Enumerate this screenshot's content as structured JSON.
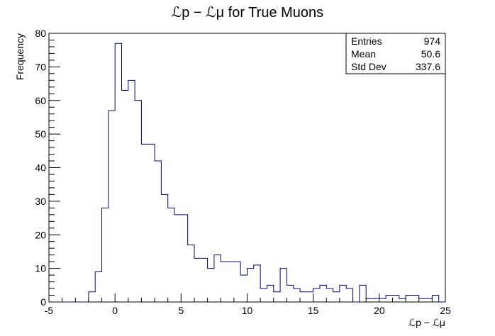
{
  "chart_data": {
    "type": "bar",
    "title": "ℒp − ℒμ for True Muons",
    "xlabel": "ℒp − ℒμ",
    "ylabel": "Frequency",
    "xlim": [
      -5,
      25
    ],
    "ylim": [
      0,
      80
    ],
    "bin_width": 0.5,
    "bin_start": -5,
    "values": [
      0,
      0,
      0,
      0,
      0,
      0,
      3,
      9,
      28,
      57,
      77,
      63,
      66,
      60,
      47,
      47,
      42,
      32,
      28,
      26,
      26,
      17,
      13,
      13,
      10,
      14,
      12,
      12,
      12,
      8,
      10,
      11,
      4,
      5,
      3,
      10,
      5,
      4,
      3,
      3,
      4,
      5,
      4,
      3,
      5,
      4,
      0,
      5,
      1,
      1,
      1,
      2,
      2,
      1,
      2,
      2,
      1,
      1,
      2,
      0
    ],
    "xticks": [
      "-5",
      "0",
      "5",
      "10",
      "15",
      "20",
      "25"
    ],
    "yticks": [
      "0",
      "10",
      "20",
      "30",
      "40",
      "50",
      "60",
      "70",
      "80"
    ],
    "line_color": "#000080",
    "grid": false,
    "legend": "none"
  },
  "stats": {
    "entries_label": "Entries",
    "entries_value": "974",
    "mean_label": "Mean",
    "mean_value": "50.6",
    "stddev_label": "Std Dev",
    "stddev_value": "337.6"
  }
}
